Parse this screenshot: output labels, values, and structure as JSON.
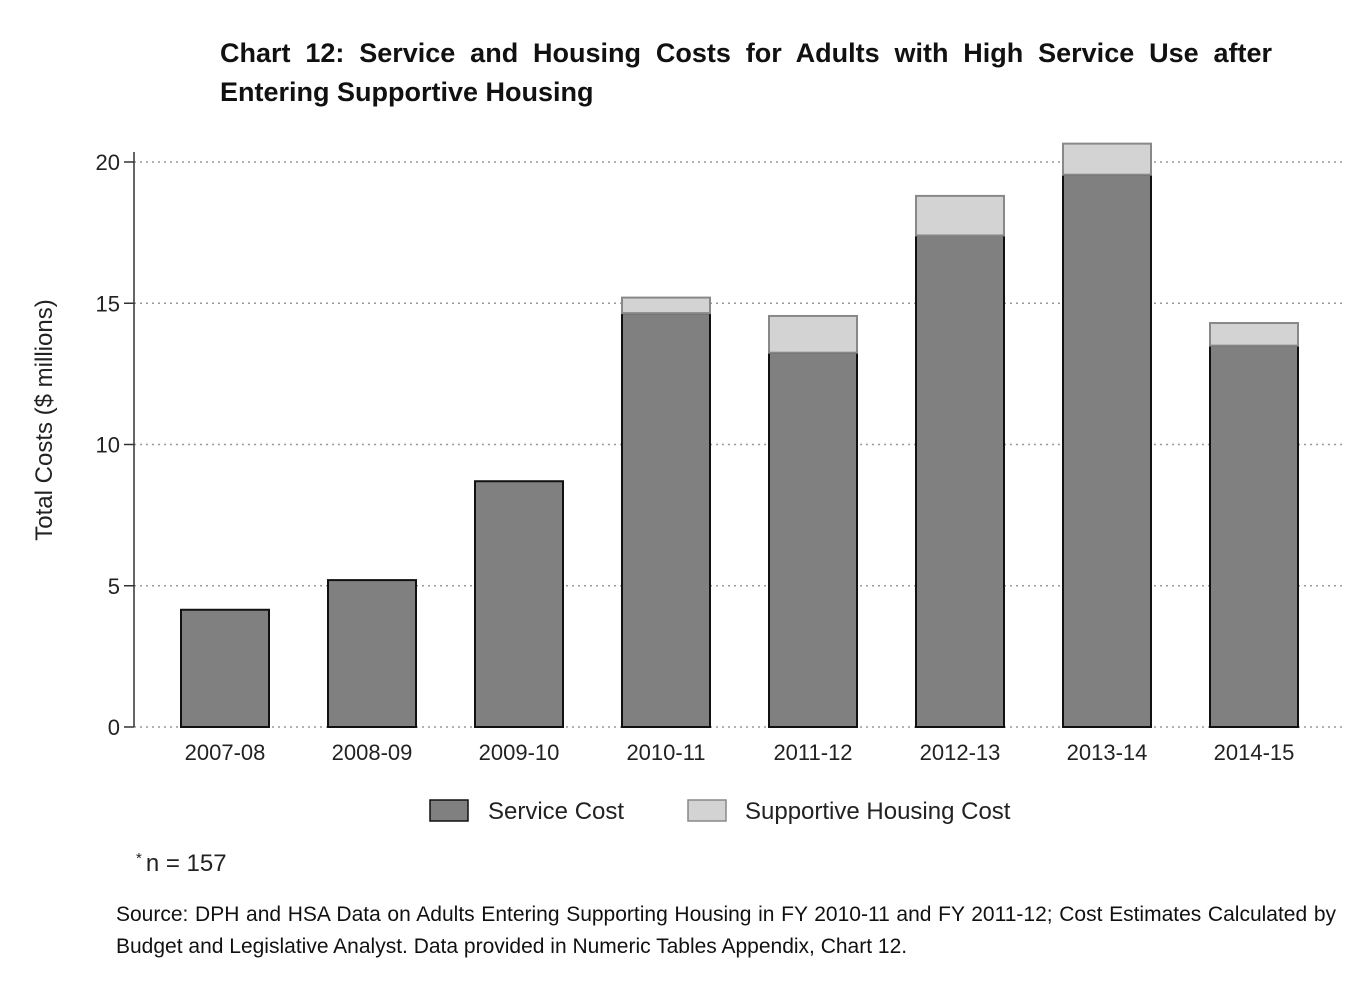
{
  "chart_data": {
    "type": "bar",
    "stacked": true,
    "title": "Chart 12: Service and Housing Costs for Adults with High Service Use after Entering Supportive Housing",
    "xlabel": "",
    "ylabel": "Total Costs ($ millions)",
    "ylim": [
      0,
      21
    ],
    "yticks": [
      0,
      5,
      10,
      15,
      20
    ],
    "grid": true,
    "legend_position": "bottom",
    "categories": [
      "2007-08",
      "2008-09",
      "2009-10",
      "2010-11",
      "2011-12",
      "2012-13",
      "2013-14",
      "2014-15"
    ],
    "series": [
      {
        "name": "Service Cost",
        "color": "#808080",
        "values": [
          4.15,
          5.2,
          8.7,
          14.65,
          13.25,
          17.4,
          19.55,
          13.5
        ]
      },
      {
        "name": "Supportive Housing Cost",
        "color": "#d3d3d3",
        "values": [
          0,
          0,
          0,
          0.55,
          1.3,
          1.4,
          1.1,
          0.8
        ]
      }
    ]
  },
  "footnote": "n = 157",
  "footnote_mark": "*",
  "source": "Source: DPH and HSA Data on Adults Entering Supporting Housing in FY 2010-11 and FY 2011-12; Cost Estimates Calculated by Budget and Legislative Analyst. Data provided in Numeric Tables Appendix, Chart 12."
}
